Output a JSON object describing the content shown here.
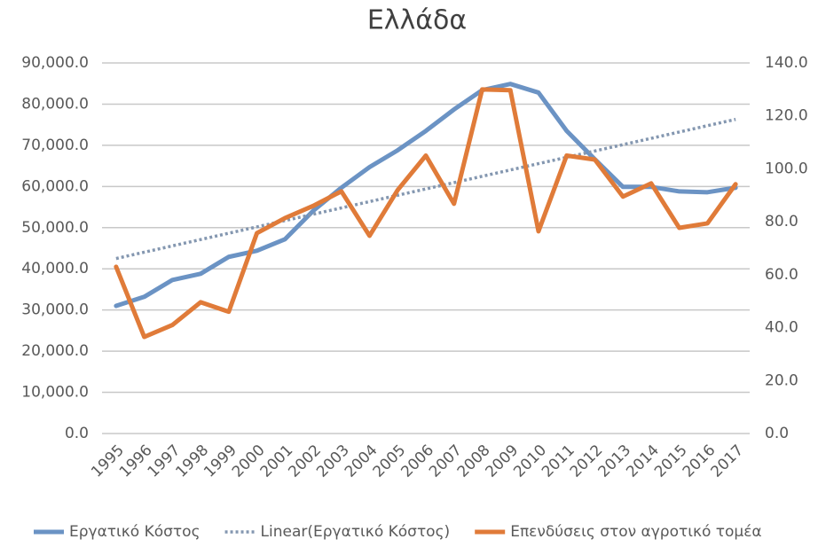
{
  "chart_data": {
    "type": "line",
    "title": "Ελλάδα",
    "categories": [
      "1995",
      "1996",
      "1997",
      "1998",
      "1999",
      "2000",
      "2001",
      "2002",
      "2003",
      "2004",
      "2005",
      "2006",
      "2007",
      "2008",
      "2009",
      "2010",
      "2011",
      "2012",
      "2013",
      "2014",
      "2015",
      "2016",
      "2017"
    ],
    "series": [
      {
        "name": "Εργατικό Κόστος",
        "color": "#6b93c4",
        "style": "solid",
        "values": [
          31000,
          33200,
          37300,
          38800,
          42900,
          44400,
          47200,
          54100,
          59700,
          64700,
          68800,
          73500,
          78700,
          83400,
          84900,
          82800,
          73500,
          66600,
          59900,
          59900,
          58800,
          58600,
          59700
        ]
      },
      {
        "name": "Linear(Εργατικό Κόστος)",
        "color": "#8497b0",
        "style": "dotted",
        "values": [
          42500,
          44036,
          45573,
          47109,
          48645,
          50182,
          51718,
          53255,
          54791,
          56327,
          57864,
          59400,
          60936,
          62473,
          64009,
          65545,
          67082,
          68618,
          70155,
          71691,
          73227,
          74764,
          76300
        ]
      },
      {
        "name": "Επενδύσεις στον αγροτικό τομέα",
        "color": "#e07b39",
        "style": "solid",
        "axis": "y2",
        "values": [
          63,
          36.5,
          41,
          49.6,
          46,
          75.7,
          81.4,
          86,
          91.5,
          74.7,
          92,
          105,
          86.8,
          130,
          129.7,
          76.4,
          105,
          103.5,
          89.5,
          94.5,
          77.7,
          79.4,
          94.2
        ]
      }
    ],
    "ylim": [
      0,
      90000
    ],
    "yticks": [
      {
        "value": 0,
        "label": "0.0"
      },
      {
        "value": 10000,
        "label": "10,000.0"
      },
      {
        "value": 20000,
        "label": "20,000.0"
      },
      {
        "value": 30000,
        "label": "30,000.0"
      },
      {
        "value": 40000,
        "label": "40,000.0"
      },
      {
        "value": 50000,
        "label": "50,000.0"
      },
      {
        "value": 60000,
        "label": "60,000.0"
      },
      {
        "value": 70000,
        "label": "70,000.0"
      },
      {
        "value": 80000,
        "label": "80,000.0"
      },
      {
        "value": 90000,
        "label": "90,000.0"
      }
    ],
    "y2lim": [
      0,
      140
    ],
    "y2ticks": [
      {
        "value": 0,
        "label": "0.0"
      },
      {
        "value": 20,
        "label": "20.0"
      },
      {
        "value": 40,
        "label": "40.0"
      },
      {
        "value": 60,
        "label": "60.0"
      },
      {
        "value": 80,
        "label": "80.0"
      },
      {
        "value": 100,
        "label": "100.0"
      },
      {
        "value": 120,
        "label": "120.0"
      },
      {
        "value": 140,
        "label": "140.0"
      }
    ],
    "grid": true,
    "legend": "bottom"
  }
}
